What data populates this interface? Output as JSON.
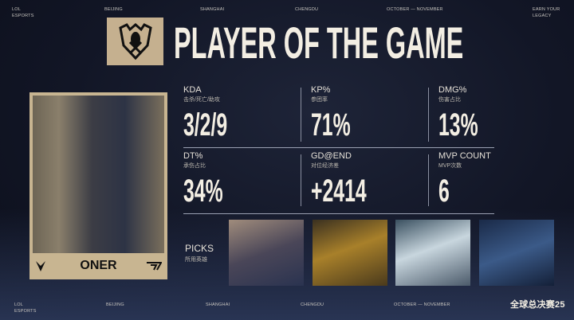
{
  "header": {
    "left": [
      "LOL",
      "ESPORTS"
    ],
    "cities": [
      "BEIJING",
      "SHANGHAI",
      "CHENGDU"
    ],
    "dates": "OCTOBER — NOVEMBER",
    "right": [
      "EARN YOUR",
      "LEGACY"
    ]
  },
  "title": "PLAYER OF THE GAME",
  "player": {
    "name": "ONER",
    "team": "T1"
  },
  "stats": [
    {
      "label": "KDA",
      "sub": "击杀/死亡/助攻",
      "value": "3/2/9"
    },
    {
      "label": "KP%",
      "sub": "参团率",
      "value": "71%"
    },
    {
      "label": "DMG%",
      "sub": "伤害占比",
      "value": "13%"
    },
    {
      "label": "DT%",
      "sub": "承伤占比",
      "value": "34%"
    },
    {
      "label": "GD@END",
      "sub": "对位经济差",
      "value": "+2414"
    },
    {
      "label": "MVP COUNT",
      "sub": "MVP次数",
      "value": "6"
    }
  ],
  "picks": {
    "label": "PICKS",
    "sub": "所用英雄",
    "colors": [
      "#6b5a55",
      "#8a6a2a",
      "#9fb3c4",
      "#1f3352"
    ]
  },
  "footer": {
    "left": [
      "LOL",
      "ESPORTS"
    ],
    "cities": [
      "BEIJING",
      "SHANGHAI",
      "CHENGDU"
    ],
    "dates": "OCTOBER — NOVEMBER",
    "brand": "全球总决赛25"
  },
  "colors": {
    "accent": "#c5b08f",
    "background": "#0f1322"
  }
}
